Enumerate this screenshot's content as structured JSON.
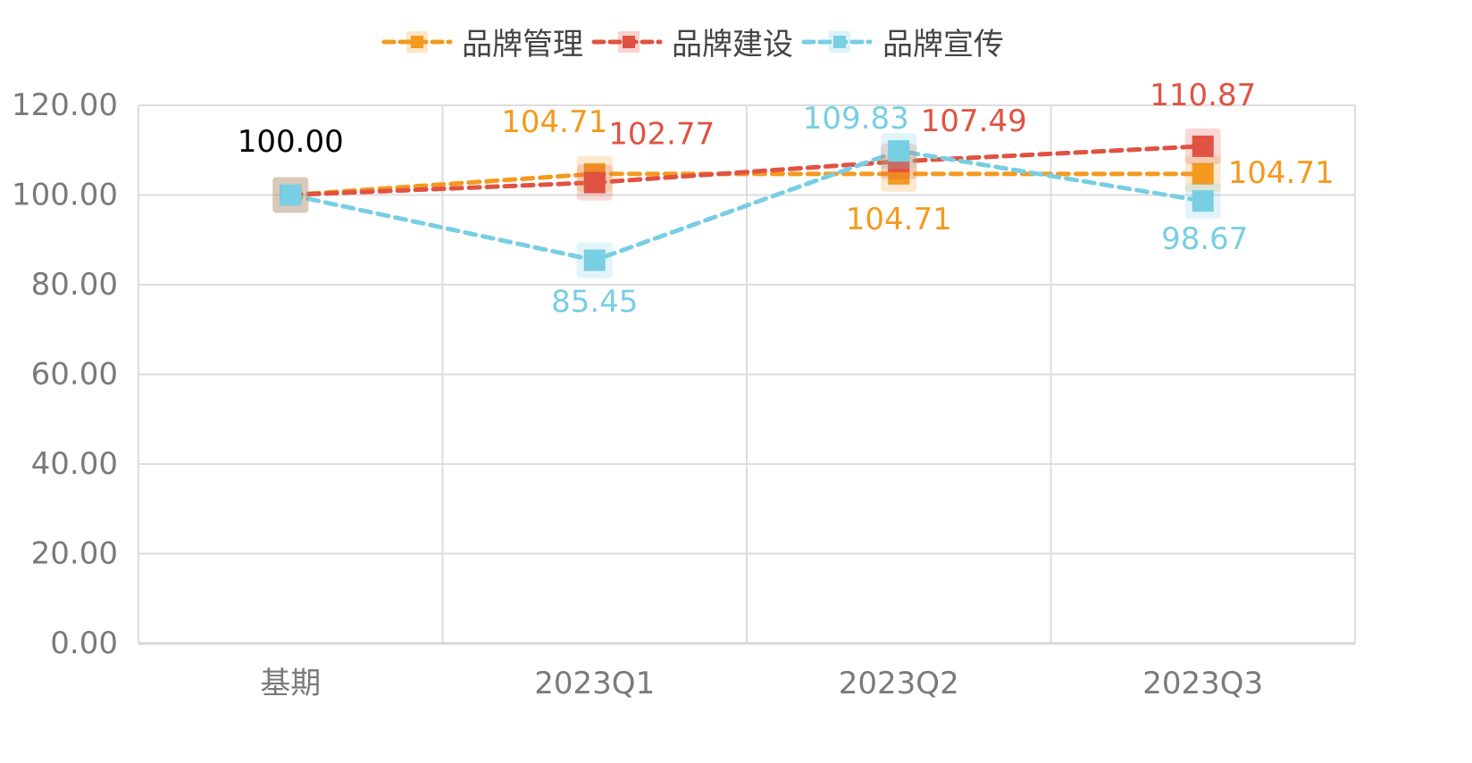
{
  "chart_data": {
    "type": "line",
    "categories": [
      "基期",
      "2023Q1",
      "2023Q2",
      "2023Q3"
    ],
    "ylim": [
      0,
      120
    ],
    "yticks": [
      "0.00",
      "20.00",
      "40.00",
      "60.00",
      "80.00",
      "100.00",
      "120.00"
    ],
    "grid": true,
    "legend_position": "top-center",
    "base_label": "100.00",
    "base_label_color": "#000000",
    "series": [
      {
        "name": "品牌管理",
        "color": "#F39A1F",
        "values": [
          100.0,
          104.71,
          104.71,
          104.71
        ],
        "labels": [
          "",
          "104.71",
          "104.71",
          "104.71"
        ]
      },
      {
        "name": "品牌建设",
        "color": "#E05241",
        "values": [
          100.0,
          102.77,
          107.49,
          110.87
        ],
        "labels": [
          "",
          "102.77",
          "107.49",
          "110.87"
        ]
      },
      {
        "name": "品牌宣传",
        "color": "#78CEE3",
        "values": [
          100.0,
          85.45,
          109.83,
          98.67
        ],
        "labels": [
          "",
          "85.45",
          "109.83",
          "98.67"
        ]
      }
    ]
  }
}
